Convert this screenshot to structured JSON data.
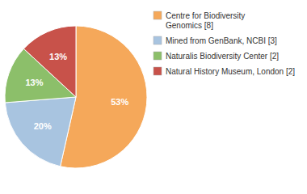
{
  "chart_data": {
    "type": "pie",
    "categories": [
      "Centre for Biodiversity\nGenomics [8]",
      "Mined from GenBank, NCBI [3]",
      "Naturalis Biodiversity Center [2]",
      "Natural History Museum, London [2]"
    ],
    "values": [
      53,
      20,
      13,
      13
    ],
    "value_labels": [
      "53%",
      "20%",
      "13%",
      "13%"
    ],
    "colors": [
      "#F5A85A",
      "#A8C4E0",
      "#8CBF6A",
      "#C8524A"
    ],
    "data_labels": true,
    "legend": "right"
  }
}
